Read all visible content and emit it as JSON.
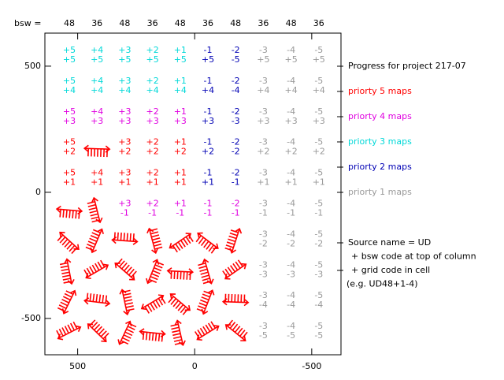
{
  "chart_data": {
    "type": "grid",
    "header_label": "bsw =",
    "columns": [
      48,
      36,
      48,
      36,
      48,
      36,
      48,
      36,
      48,
      36
    ],
    "xlim": [
      640,
      -625
    ],
    "ylim": [
      -644,
      631
    ],
    "xticks": [
      500,
      0,
      -500
    ],
    "yticks": [
      -500,
      0,
      500
    ],
    "title": "Progress for project 217-07",
    "priorities": [
      {
        "level": 5,
        "name": "priorty 5 maps",
        "color": "#ff0000"
      },
      {
        "level": 4,
        "name": "priorty 4 maps",
        "color": "#e000e0"
      },
      {
        "level": 3,
        "name": "priorty 3 maps",
        "color": "#00d8d8"
      },
      {
        "level": 2,
        "name": "priorty 2 maps",
        "color": "#0000b4"
      },
      {
        "level": 1,
        "name": "priorty 1 maps",
        "color": "#999999"
      }
    ],
    "notes": [
      "Source name = UD",
      "+ bsw code at top of column",
      "+ grid code in cell",
      "(e.g. UD48+1-4)"
    ],
    "rows": [
      [
        {
          "top": "+5",
          "bottom": "+5",
          "priority": 3
        },
        {
          "top": "+4",
          "bottom": "+5",
          "priority": 3
        },
        {
          "top": "+3",
          "bottom": "+5",
          "priority": 3
        },
        {
          "top": "+2",
          "bottom": "+5",
          "priority": 3
        },
        {
          "top": "+1",
          "bottom": "+5",
          "priority": 3
        },
        {
          "top": "-1",
          "bottom": "+5",
          "priority": 2
        },
        {
          "top": "-2",
          "bottom": "-5",
          "priority": 2
        },
        {
          "top": "-3",
          "bottom": "+5",
          "priority": 1
        },
        {
          "top": "-4",
          "bottom": "+5",
          "priority": 1
        },
        {
          "top": "-5",
          "bottom": "+5",
          "priority": 1
        }
      ],
      [
        {
          "top": "+5",
          "bottom": "+4",
          "priority": 3
        },
        {
          "top": "+4",
          "bottom": "+4",
          "priority": 3
        },
        {
          "top": "+3",
          "bottom": "+4",
          "priority": 3
        },
        {
          "top": "+2",
          "bottom": "+4",
          "priority": 3
        },
        {
          "top": "+1",
          "bottom": "+4",
          "priority": 3
        },
        {
          "top": "-1",
          "bottom": "+4",
          "priority": 2
        },
        {
          "top": "-2",
          "bottom": "-4",
          "priority": 2
        },
        {
          "top": "-3",
          "bottom": "+4",
          "priority": 1
        },
        {
          "top": "-4",
          "bottom": "+4",
          "priority": 1
        },
        {
          "top": "-5",
          "bottom": "+4",
          "priority": 1
        }
      ],
      [
        {
          "top": "+5",
          "bottom": "+3",
          "priority": 4
        },
        {
          "top": "+4",
          "bottom": "+3",
          "priority": 4
        },
        {
          "top": "+3",
          "bottom": "+3",
          "priority": 4
        },
        {
          "top": "+2",
          "bottom": "+3",
          "priority": 4
        },
        {
          "top": "+1",
          "bottom": "+3",
          "priority": 4
        },
        {
          "top": "-1",
          "bottom": "+3",
          "priority": 2
        },
        {
          "top": "-2",
          "bottom": "-3",
          "priority": 2
        },
        {
          "top": "-3",
          "bottom": "+3",
          "priority": 1
        },
        {
          "top": "-4",
          "bottom": "+3",
          "priority": 1
        },
        {
          "top": "-5",
          "bottom": "+3",
          "priority": 1
        }
      ],
      [
        {
          "top": "+5",
          "bottom": "+2",
          "priority": 5
        },
        null,
        {
          "top": "+3",
          "bottom": "+2",
          "priority": 5
        },
        {
          "top": "+2",
          "bottom": "+2",
          "priority": 5
        },
        {
          "top": "+1",
          "bottom": "+2",
          "priority": 5
        },
        {
          "top": "-1",
          "bottom": "+2",
          "priority": 2
        },
        {
          "top": "-2",
          "bottom": "-2",
          "priority": 2
        },
        {
          "top": "-3",
          "bottom": "+2",
          "priority": 1
        },
        {
          "top": "-4",
          "bottom": "+2",
          "priority": 1
        },
        {
          "top": "-5",
          "bottom": "+2",
          "priority": 1
        }
      ],
      [
        {
          "top": "+5",
          "bottom": "+1",
          "priority": 5
        },
        {
          "top": "+4",
          "bottom": "+1",
          "priority": 5
        },
        {
          "top": "+3",
          "bottom": "+1",
          "priority": 5
        },
        {
          "top": "+2",
          "bottom": "+1",
          "priority": 5
        },
        {
          "top": "+1",
          "bottom": "+1",
          "priority": 5
        },
        {
          "top": "-1",
          "bottom": "+1",
          "priority": 2
        },
        {
          "top": "-2",
          "bottom": "-1",
          "priority": 2
        },
        {
          "top": "-3",
          "bottom": "+1",
          "priority": 1
        },
        {
          "top": "-4",
          "bottom": "+1",
          "priority": 1
        },
        {
          "top": "-5",
          "bottom": "+1",
          "priority": 1
        }
      ],
      [
        null,
        null,
        {
          "top": "+3",
          "bottom": "-1",
          "priority": 4
        },
        {
          "top": "+2",
          "bottom": "-1",
          "priority": 4
        },
        {
          "top": "+1",
          "bottom": "-1",
          "priority": 4
        },
        {
          "top": "-1",
          "bottom": "-1",
          "priority": 4
        },
        {
          "top": "-2",
          "bottom": "-1",
          "priority": 4
        },
        {
          "top": "-3",
          "bottom": "-1",
          "priority": 1
        },
        {
          "top": "-4",
          "bottom": "-1",
          "priority": 1
        },
        {
          "top": "-5",
          "bottom": "-1",
          "priority": 1
        }
      ],
      [
        null,
        null,
        null,
        null,
        null,
        null,
        null,
        {
          "top": "-3",
          "bottom": "-2",
          "priority": 1
        },
        {
          "top": "-4",
          "bottom": "-2",
          "priority": 1
        },
        {
          "top": "-5",
          "bottom": "-2",
          "priority": 1
        }
      ],
      [
        null,
        null,
        null,
        null,
        null,
        null,
        null,
        {
          "top": "-3",
          "bottom": "-3",
          "priority": 1
        },
        {
          "top": "-4",
          "bottom": "-3",
          "priority": 1
        },
        {
          "top": "-5",
          "bottom": "-3",
          "priority": 1
        }
      ],
      [
        null,
        null,
        null,
        null,
        null,
        null,
        null,
        {
          "top": "-3",
          "bottom": "-4",
          "priority": 1
        },
        {
          "top": "-4",
          "bottom": "-4",
          "priority": 1
        },
        {
          "top": "-5",
          "bottom": "-4",
          "priority": 1
        }
      ],
      [
        null,
        null,
        null,
        null,
        null,
        null,
        null,
        {
          "top": "-3",
          "bottom": "-5",
          "priority": 1
        },
        {
          "top": "-4",
          "bottom": "-5",
          "priority": 1
        },
        {
          "top": "-5",
          "bottom": "-5",
          "priority": 1
        }
      ]
    ]
  }
}
